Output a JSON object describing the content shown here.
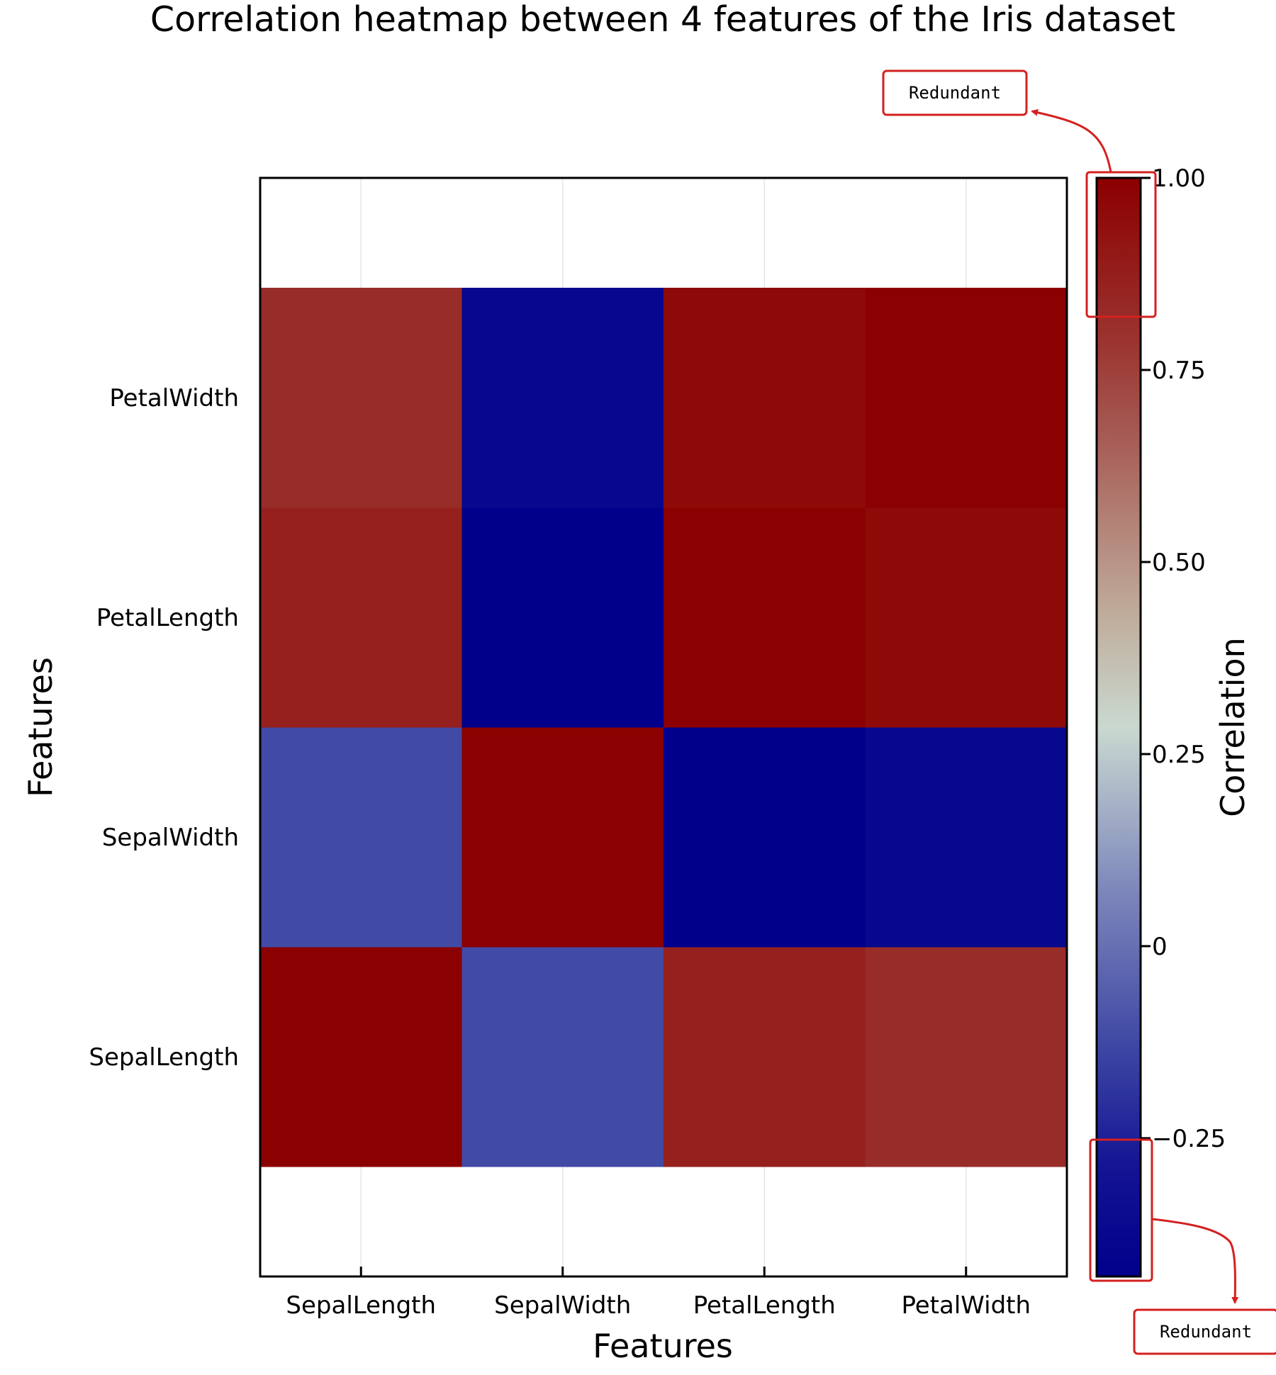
{
  "chart_data": {
    "type": "heatmap",
    "title": "Correlation heatmap between 4 features of the Iris dataset",
    "xlabel": "Features",
    "ylabel": "Features",
    "x_categories": [
      "SepalLength",
      "SepalWidth",
      "PetalLength",
      "PetalWidth"
    ],
    "y_categories": [
      "SepalLength",
      "SepalWidth",
      "PetalLength",
      "PetalWidth"
    ],
    "ylim_categories": [
      0,
      5
    ],
    "values": [
      [
        1.0,
        -0.12,
        0.87,
        0.82
      ],
      [
        -0.12,
        1.0,
        -0.43,
        -0.37
      ],
      [
        0.87,
        -0.43,
        1.0,
        0.96
      ],
      [
        0.82,
        -0.37,
        0.96,
        1.0
      ]
    ],
    "colorbar": {
      "label": "Correlation",
      "range": [
        -0.43,
        1.0
      ],
      "ticks": [
        1.0,
        0.75,
        0.5,
        0.25,
        0,
        -0.25
      ],
      "tick_labels": [
        "1.00",
        "0.75",
        "0.50",
        "0.25",
        "0",
        "−0.25"
      ],
      "colors": [
        {
          "stop": 0.0,
          "color": "#00008b"
        },
        {
          "stop": 0.1,
          "color": "#141494"
        },
        {
          "stop": 0.2,
          "color": "#3a43a2"
        },
        {
          "stop": 0.35,
          "color": "#7d86bb"
        },
        {
          "stop": 0.5,
          "color": "#c9d9d0"
        },
        {
          "stop": 0.6,
          "color": "#c0ad9c"
        },
        {
          "stop": 0.75,
          "color": "#a8625b"
        },
        {
          "stop": 0.85,
          "color": "#9b3430"
        },
        {
          "stop": 1.0,
          "color": "#8b0000"
        }
      ]
    },
    "annotations": [
      {
        "text": "Redundant",
        "target": "colorbar-top"
      },
      {
        "text": "Redundant",
        "target": "colorbar-bottom"
      }
    ],
    "annotation_color": "#d42020"
  }
}
